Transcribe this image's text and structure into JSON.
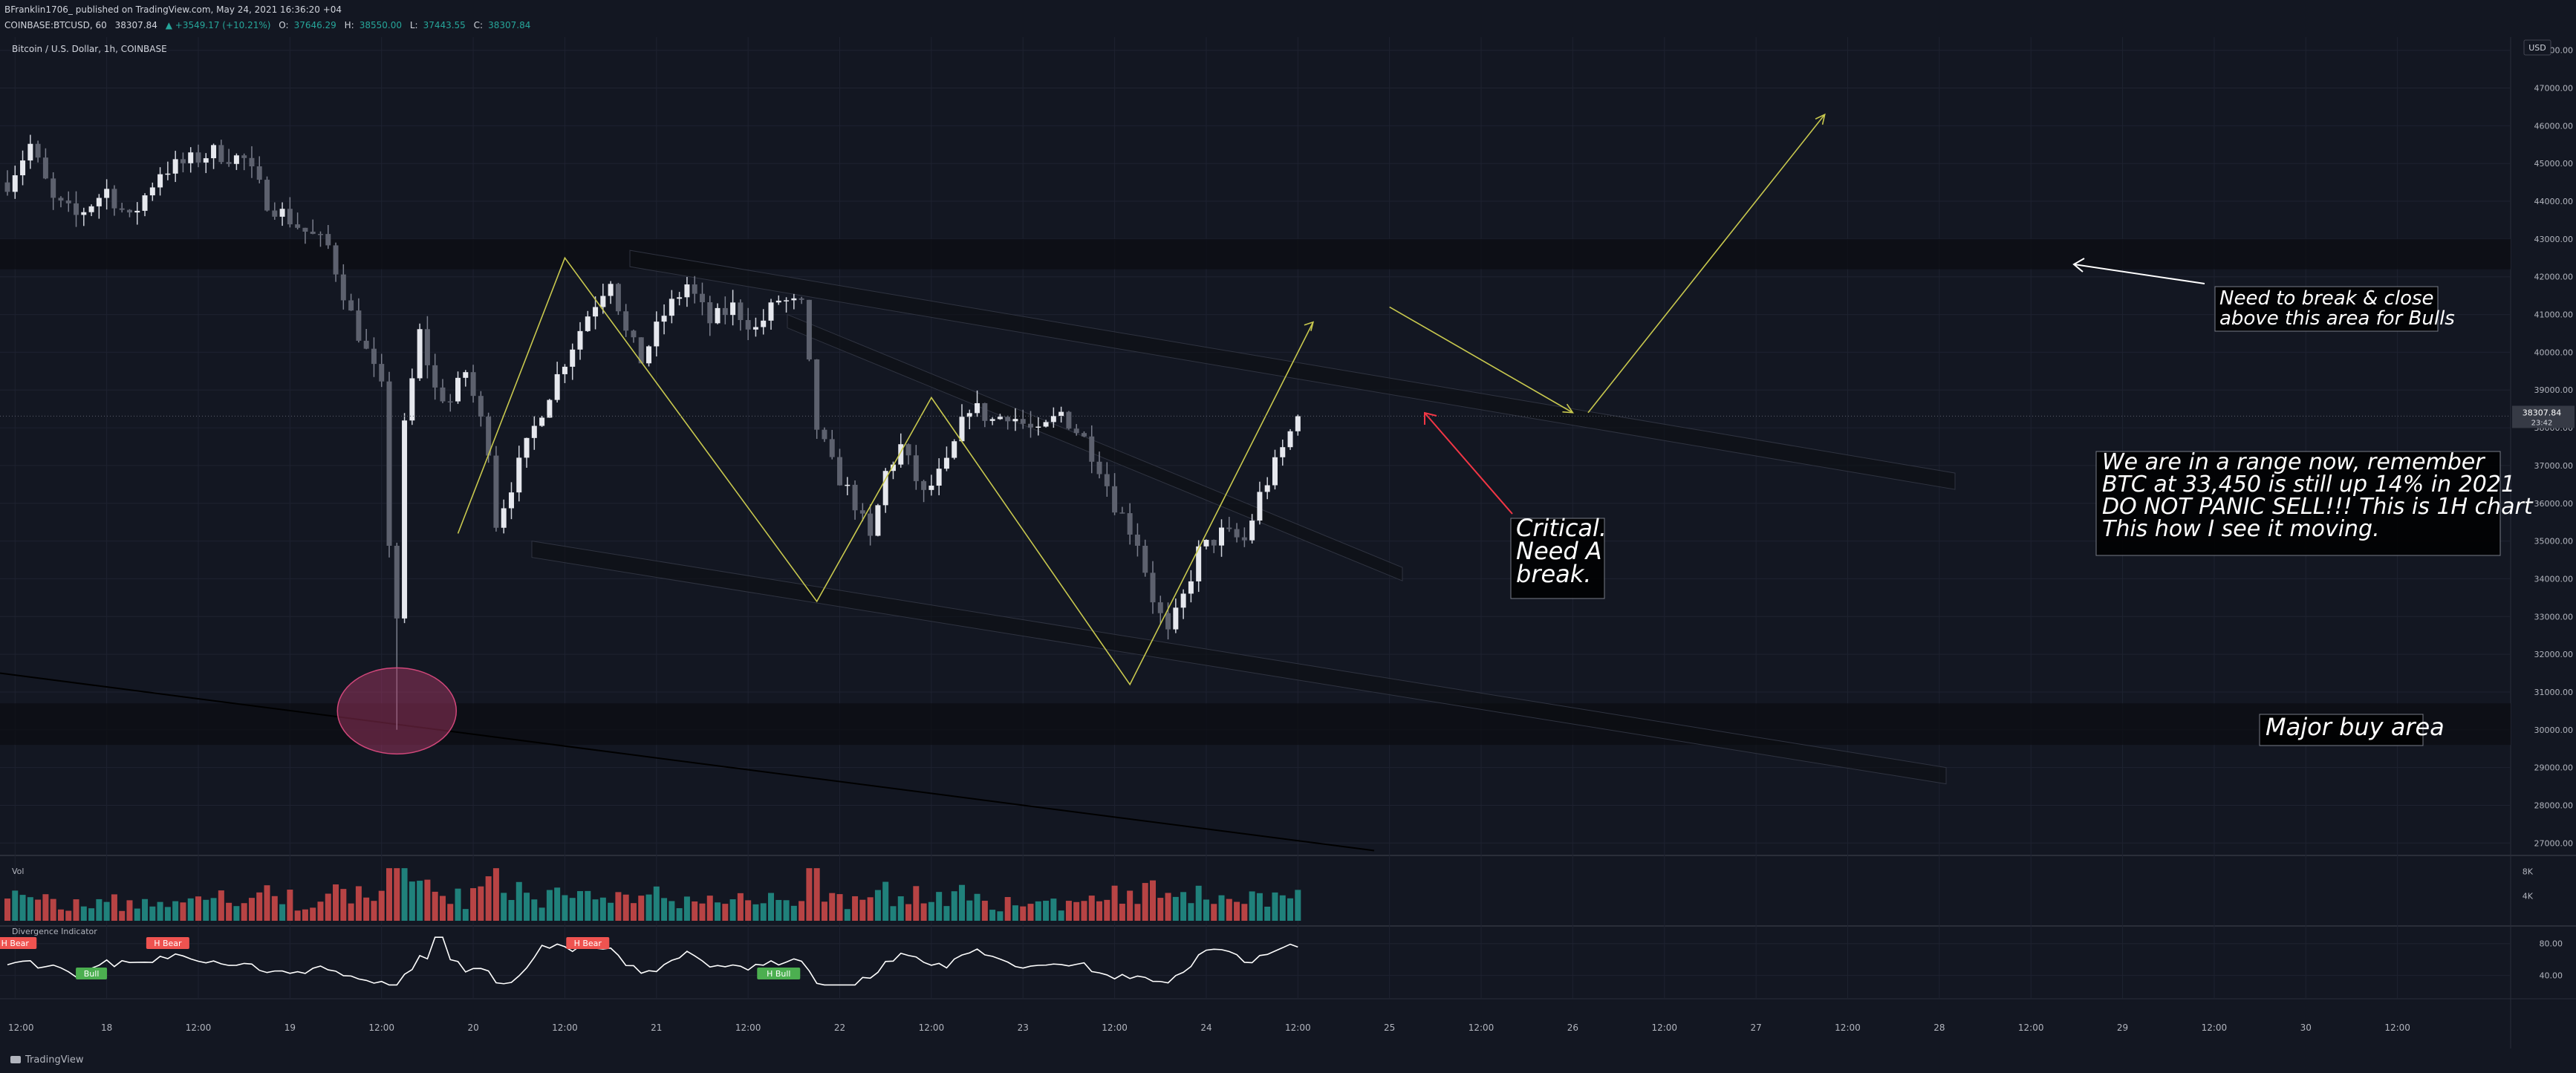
{
  "header": {
    "published_by": "BFranklin1706_ published on TradingView.com, May 24, 2021 16:36:20 +04",
    "symbol": "COINBASE:BTCUSD, 60",
    "last": "38307.84",
    "change": "▲ +3549.17 (+10.21%)",
    "ohlc": [
      {
        "k": "O:",
        "v": "37646.29"
      },
      {
        "k": "H:",
        "v": "38550.00"
      },
      {
        "k": "L:",
        "v": "37443.55"
      },
      {
        "k": "C:",
        "v": "38307.84"
      }
    ]
  },
  "footer": {
    "brand": "TradingView"
  },
  "colors": {
    "bg": "#131722",
    "up": "#26a69a",
    "down": "#ef5350",
    "grid": "#1e2230",
    "zone": "#0c0e13",
    "annot": "#c8c84e",
    "callout": "#f23645",
    "circle": "#b03a69",
    "text": "#d1d4dc"
  },
  "chart_data": {
    "type": "candlestick",
    "title": "Bitcoin / U.S. Dollar, 1h, COINBASE",
    "currency": "USD",
    "price_axis": {
      "ticks": [
        27000,
        28000,
        29000,
        30000,
        31000,
        32000,
        33000,
        34000,
        35000,
        36000,
        37000,
        38000,
        39000,
        40000,
        41000,
        42000,
        43000,
        44000,
        45000,
        46000,
        47000,
        48000
      ],
      "ylim": [
        26750,
        48250
      ]
    },
    "last_price": {
      "value": 38307.84,
      "label": "38307.84",
      "countdown": "23:42"
    },
    "time_axis": {
      "ticks": [
        "12:00",
        "18",
        "12:00",
        "19",
        "12:00",
        "20",
        "12:00",
        "21",
        "12:00",
        "22",
        "12:00",
        "23",
        "12:00",
        "24",
        "12:00",
        "25",
        "12:00",
        "26",
        "12:00",
        "27",
        "12:00",
        "28",
        "12:00",
        "29",
        "12:00",
        "30",
        "12:00"
      ],
      "start": "2021-05-17 11:00",
      "hours_visible": 327
    },
    "price_path": [
      [
        "2021-05-17 11:00",
        44500
      ],
      [
        "2021-05-17 14:00",
        45500
      ],
      [
        "2021-05-17 17:00",
        44000
      ],
      [
        "2021-05-17 20:00",
        43600
      ],
      [
        "2021-05-18 00:00",
        44300
      ],
      [
        "2021-05-18 03:00",
        43500
      ],
      [
        "2021-05-18 07:00",
        44800
      ],
      [
        "2021-05-18 10:00",
        45000
      ],
      [
        "2021-05-18 14:00",
        45300
      ],
      [
        "2021-05-18 18:00",
        45100
      ],
      [
        "2021-05-18 21:00",
        44000
      ],
      [
        "2021-05-19 02:00",
        43200
      ],
      [
        "2021-05-19 05:00",
        42800
      ],
      [
        "2021-05-19 08:00",
        41000
      ],
      [
        "2021-05-19 10:00",
        40000
      ],
      [
        "2021-05-19 12:00",
        39000
      ],
      [
        "2021-05-19 13:00",
        35000
      ],
      [
        "2021-05-19 14:00",
        33000
      ],
      [
        "2021-05-19 15:00",
        38000
      ],
      [
        "2021-05-19 17:00",
        40500
      ],
      [
        "2021-05-19 19:00",
        39000
      ],
      [
        "2021-05-19 21:00",
        38700
      ],
      [
        "2021-05-19 23:00",
        39500
      ],
      [
        "2021-05-20 02:00",
        37500
      ],
      [
        "2021-05-20 03:00",
        35500
      ],
      [
        "2021-05-20 05:00",
        36500
      ],
      [
        "2021-05-20 09:00",
        38500
      ],
      [
        "2021-05-20 12:00",
        39800
      ],
      [
        "2021-05-20 15:00",
        41000
      ],
      [
        "2021-05-20 18:00",
        42000
      ],
      [
        "2021-05-20 20:00",
        40500
      ],
      [
        "2021-05-20 22:00",
        39800
      ],
      [
        "2021-05-21 01:00",
        41000
      ],
      [
        "2021-05-21 04:00",
        41800
      ],
      [
        "2021-05-21 07:00",
        40800
      ],
      [
        "2021-05-21 10:00",
        41200
      ],
      [
        "2021-05-21 13:00",
        40600
      ],
      [
        "2021-05-21 16:00",
        41400
      ],
      [
        "2021-05-21 19:00",
        41200
      ],
      [
        "2021-05-21 21:00",
        38000
      ],
      [
        "2021-05-21 23:00",
        37000
      ],
      [
        "2021-05-22 02:00",
        36000
      ],
      [
        "2021-05-22 04:00",
        35000
      ],
      [
        "2021-05-22 06:00",
        36800
      ],
      [
        "2021-05-22 08:00",
        37500
      ],
      [
        "2021-05-22 11:00",
        36200
      ],
      [
        "2021-05-22 14:00",
        37000
      ],
      [
        "2021-05-22 17:00",
        38600
      ],
      [
        "2021-05-22 20:00",
        38200
      ],
      [
        "2021-05-22 22:00",
        38400
      ],
      [
        "2021-05-23 02:00",
        37800
      ],
      [
        "2021-05-23 05:00",
        38400
      ],
      [
        "2021-05-23 08:00",
        37700
      ],
      [
        "2021-05-23 10:00",
        37000
      ],
      [
        "2021-05-23 12:00",
        36000
      ],
      [
        "2021-05-23 15:00",
        35000
      ],
      [
        "2021-05-23 17:00",
        33500
      ],
      [
        "2021-05-23 19:00",
        32500
      ],
      [
        "2021-05-23 21:00",
        33500
      ],
      [
        "2021-05-23 23:00",
        34700
      ],
      [
        "2021-05-24 02:00",
        35200
      ],
      [
        "2021-05-24 05:00",
        35000
      ],
      [
        "2021-05-24 07:00",
        36200
      ],
      [
        "2021-05-24 09:00",
        37000
      ],
      [
        "2021-05-24 12:00",
        38307.84
      ]
    ],
    "volume_axis": {
      "ticks": [
        4000,
        8000
      ],
      "labels": [
        "4K",
        "8K"
      ],
      "label": "Vol"
    },
    "indicator": {
      "name": "Divergence Indicator",
      "ticks": [
        40,
        80
      ],
      "tick_labels": [
        "40.00",
        "80.00"
      ],
      "signals": [
        {
          "label": "H Bear",
          "time": "2021-05-17 12:00",
          "kind": "bear"
        },
        {
          "label": "Bull",
          "time": "2021-05-17 22:00",
          "kind": "bull"
        },
        {
          "label": "H Bear",
          "time": "2021-05-18 08:00",
          "kind": "bear"
        },
        {
          "label": "H Bear",
          "time": "2021-05-20 15:00",
          "kind": "bear"
        },
        {
          "label": "H Bull",
          "time": "2021-05-21 16:00",
          "kind": "bull"
        }
      ]
    },
    "annotations": [
      {
        "id": "note-resistance",
        "text": [
          "Need to break & close",
          "above this area for Bulls"
        ]
      },
      {
        "id": "note-critical",
        "text": [
          "Critical.",
          "Need A",
          "break."
        ]
      },
      {
        "id": "note-range",
        "text": [
          "We are in a range now, remember",
          "BTC at 33,450 is still up 14% in 2021",
          "DO NOT PANIC SELL!!! This is 1H chart",
          "This how I see it moving."
        ]
      },
      {
        "id": "note-buy-area",
        "text": [
          "Major buy area"
        ]
      }
    ],
    "zones": [
      {
        "name": "resistance-zone",
        "from": 42200,
        "to": 43000
      },
      {
        "name": "major-buy-zone",
        "from": 29600,
        "to": 30700
      }
    ],
    "projection_path": [
      [
        "2021-05-19 22:00",
        35200
      ],
      [
        "2021-05-20 12:00",
        42500
      ],
      [
        "2021-05-21 21:00",
        33400
      ],
      [
        "2021-05-22 12:00",
        38800
      ],
      [
        "2021-05-23 14:00",
        31200
      ],
      [
        "2021-05-24 14:00",
        40800
      ]
    ],
    "projection_future": [
      [
        [
          "2021-05-25 00:00",
          41200
        ],
        [
          "2021-05-26 00:00",
          38400
        ]
      ],
      [
        [
          "2021-05-26 02:00",
          38400
        ],
        [
          "2021-05-27 09:00",
          46300
        ]
      ]
    ]
  }
}
